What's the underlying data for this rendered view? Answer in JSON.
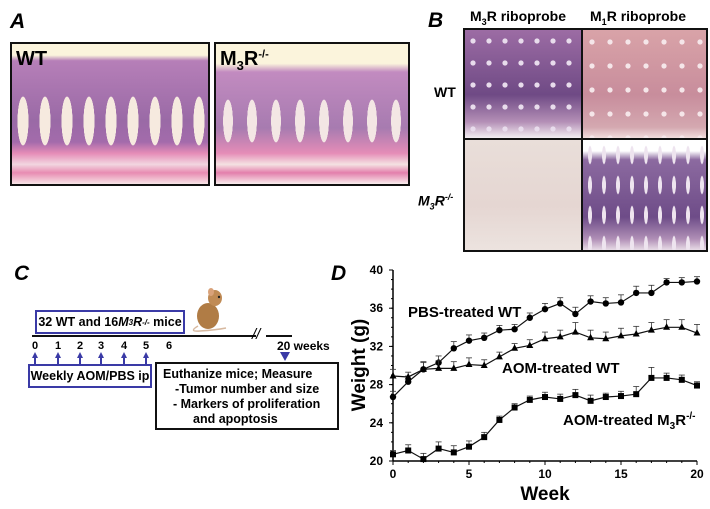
{
  "panel_a": {
    "letter": "A",
    "images": [
      {
        "label": "WT"
      },
      {
        "label_base": "M",
        "label_sub": "3",
        "label_main": "R",
        "label_sup": "-/-"
      }
    ]
  },
  "panel_b": {
    "letter": "B",
    "columns": [
      {
        "base": "M",
        "sub": "3",
        "rest": "R riboprobe"
      },
      {
        "base": "M",
        "sub": "1",
        "rest": "R riboprobe"
      }
    ],
    "rows": [
      {
        "label": "WT"
      },
      {
        "base": "M",
        "sub": "3",
        "main": "R",
        "sup": "-/-"
      }
    ]
  },
  "panel_c": {
    "letter": "C",
    "cohort_pre": "32 WT and 16 ",
    "cohort_m": "M",
    "cohort_sub": "3",
    "cohort_r": "R",
    "cohort_sup": "-/-",
    "cohort_post": " mice",
    "weeks": [
      "0",
      "1",
      "2",
      "3",
      "4",
      "5",
      "6"
    ],
    "end_week": "20 weeks",
    "injection_label": "Weekly AOM/PBS ip",
    "endpoint_title": "Euthanize mice;  Measure",
    "endpoint_items": [
      "-Tumor number and size",
      "- Markers of proliferation",
      "and apoptosis"
    ],
    "mouse_icon": "mouse-illustration"
  },
  "panel_d": {
    "letter": "D"
  },
  "chart_data": {
    "type": "line",
    "title": "",
    "xlabel": "Week",
    "ylabel": "Weight (g)",
    "xlim": [
      0,
      20
    ],
    "ylim": [
      20,
      40
    ],
    "xticks": [
      0,
      5,
      10,
      15,
      20
    ],
    "yticks": [
      20,
      24,
      28,
      32,
      36,
      40
    ],
    "x": [
      0,
      1,
      2,
      3,
      4,
      5,
      6,
      7,
      8,
      9,
      10,
      11,
      12,
      13,
      14,
      15,
      16,
      17,
      18,
      19,
      20
    ],
    "series": [
      {
        "name": "PBS-treated WT",
        "marker": "circle",
        "values": [
          26.7,
          28.3,
          29.6,
          30.3,
          31.8,
          32.6,
          32.9,
          33.7,
          33.8,
          35.0,
          35.9,
          36.5,
          35.4,
          36.7,
          36.5,
          36.6,
          37.6,
          37.6,
          38.7,
          38.7,
          38.8
        ],
        "errors": [
          0.6,
          0.6,
          0.8,
          0.7,
          0.7,
          0.6,
          0.5,
          0.5,
          0.5,
          0.5,
          0.6,
          0.6,
          0.7,
          0.6,
          0.6,
          0.8,
          0.7,
          0.8,
          0.4,
          0.5,
          0.5
        ]
      },
      {
        "name": "AOM-treated WT",
        "marker": "triangle",
        "values": [
          28.9,
          28.8,
          29.6,
          29.7,
          29.7,
          30.1,
          30.0,
          30.9,
          31.8,
          32.1,
          32.8,
          33.0,
          33.5,
          32.9,
          32.8,
          33.1,
          33.3,
          33.7,
          34.0,
          34.0,
          33.4
        ],
        "errors": [
          0.7,
          0.5,
          0.7,
          0.8,
          0.7,
          0.7,
          0.6,
          0.5,
          0.5,
          0.6,
          0.7,
          0.7,
          1.0,
          0.8,
          0.7,
          0.8,
          0.8,
          0.8,
          0.8,
          0.8,
          0.9
        ],
        "label_main": "AOM-treated WT"
      },
      {
        "name": "AOM-treated M3R-/-",
        "marker": "square",
        "values": [
          20.7,
          21.1,
          20.2,
          21.3,
          20.9,
          21.5,
          22.5,
          24.3,
          25.6,
          26.4,
          26.7,
          26.5,
          26.9,
          26.3,
          26.7,
          26.8,
          27.0,
          28.7,
          28.7,
          28.5,
          27.9
        ],
        "errors": [
          0.4,
          0.6,
          0.6,
          0.7,
          0.7,
          0.6,
          0.5,
          0.4,
          0.4,
          0.4,
          0.5,
          0.5,
          0.6,
          0.6,
          0.4,
          0.5,
          0.8,
          1.1,
          0.5,
          0.5,
          0.4
        ],
        "label_main": "AOM-treated M",
        "label_sub": "3",
        "label_r": "R",
        "label_sup": "-/-"
      }
    ]
  }
}
